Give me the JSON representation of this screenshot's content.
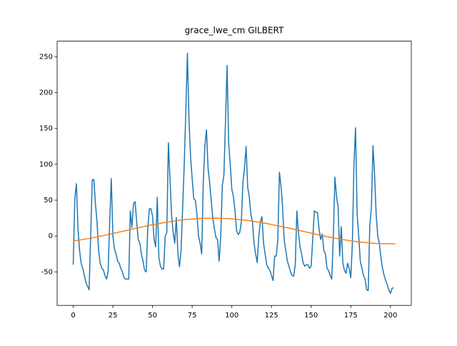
{
  "chart_data": {
    "type": "line",
    "title": "grace_lwe_cm GILBERT",
    "xlim": [
      -10.15,
      213.15
    ],
    "xticks": [
      0,
      25,
      50,
      75,
      100,
      125,
      150,
      175,
      200
    ],
    "ylim": [
      -96.75,
      271.75
    ],
    "yticks": [
      -50,
      0,
      50,
      100,
      150,
      200,
      250
    ],
    "grid": false,
    "series": [
      {
        "color": "#1f77b4",
        "values": [
          -40,
          52,
          73,
          10,
          -20,
          -38,
          -45,
          -55,
          -65,
          -70,
          -75,
          0,
          78,
          79,
          45,
          20,
          -20,
          -38,
          -45,
          -47,
          -55,
          -60,
          -50,
          20,
          80,
          0,
          -18,
          -25,
          -35,
          -38,
          -45,
          -50,
          -58,
          -60,
          -60,
          -60,
          35,
          12,
          45,
          48,
          20,
          -5,
          -10,
          -25,
          -35,
          -48,
          -50,
          10,
          38,
          38,
          28,
          -5,
          -15,
          54,
          -30,
          -42,
          -46,
          -46,
          0,
          5,
          130,
          80,
          30,
          5,
          -10,
          26,
          -25,
          -43,
          -20,
          40,
          100,
          175,
          255,
          160,
          110,
          80,
          52,
          50,
          30,
          0,
          -10,
          -25,
          75,
          125,
          148,
          95,
          75,
          50,
          25,
          10,
          -2,
          -5,
          -35,
          0,
          70,
          85,
          160,
          238,
          130,
          100,
          65,
          55,
          35,
          8,
          2,
          5,
          20,
          75,
          95,
          125,
          68,
          55,
          30,
          20,
          -10,
          -25,
          -37,
          0,
          20,
          27,
          -10,
          -25,
          -40,
          -45,
          -48,
          -55,
          -62,
          -28,
          -28,
          -5,
          89,
          70,
          40,
          -5,
          -20,
          -35,
          -42,
          -50,
          -55,
          -56,
          -40,
          35,
          5,
          -15,
          -25,
          -38,
          -42,
          -40,
          -40,
          -45,
          -42,
          -5,
          35,
          33,
          33,
          10,
          -5,
          3,
          -20,
          -25,
          -45,
          -48,
          -55,
          -60,
          0,
          82,
          55,
          40,
          -28,
          13,
          -38,
          -48,
          -52,
          -38,
          -45,
          -58,
          -10,
          100,
          151,
          30,
          0,
          -35,
          -45,
          -55,
          -60,
          -75,
          -76,
          15,
          40,
          126,
          85,
          30,
          0,
          -10,
          -30,
          -45,
          -55,
          -62,
          -68,
          -75,
          -80,
          -73,
          -72
        ]
      },
      {
        "color": "#ff7f0e",
        "x": [
          0,
          10,
          20,
          30,
          40,
          50,
          60,
          70,
          80,
          90,
          100,
          110,
          120,
          130,
          140,
          150,
          160,
          170,
          180,
          190,
          203
        ],
        "values": [
          -7.0,
          -3.4,
          1.1,
          6.0,
          11.0,
          15.7,
          19.7,
          22.8,
          24.6,
          25.0,
          24.0,
          21.7,
          18.2,
          13.9,
          9.0,
          4.0,
          -0.8,
          -5.0,
          -8.2,
          -10.3,
          -10.9
        ]
      }
    ]
  }
}
